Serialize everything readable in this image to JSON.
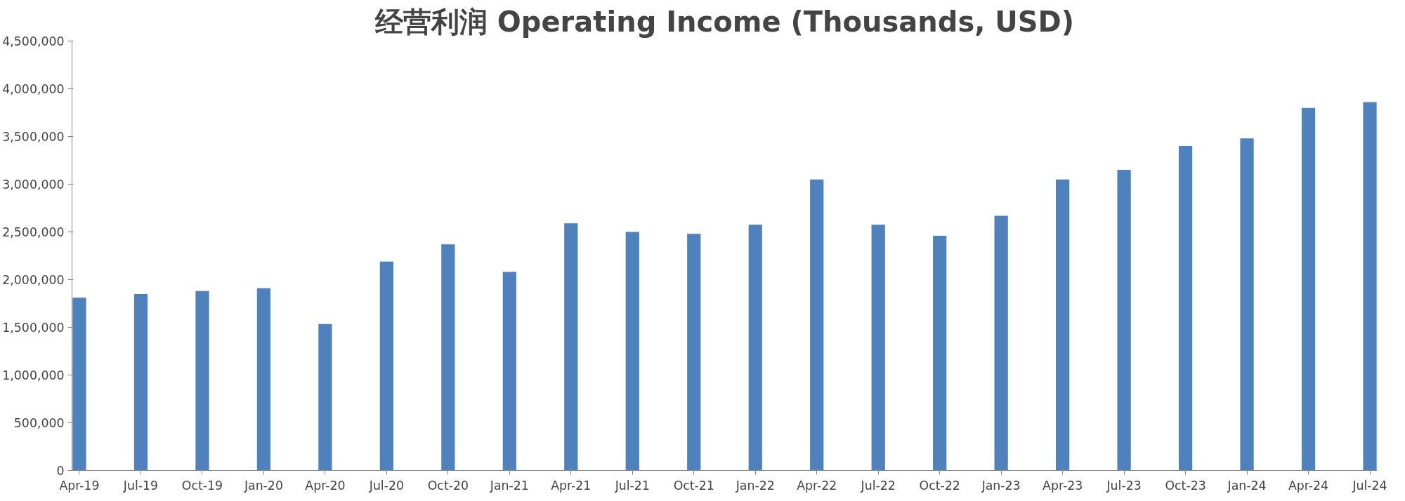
{
  "chart_data": {
    "type": "bar",
    "title": "经营利润 Operating Income (Thousands, USD)",
    "categories": [
      "Apr-19",
      "Jul-19",
      "Oct-19",
      "Jan-20",
      "Apr-20",
      "Jul-20",
      "Oct-20",
      "Jan-21",
      "Apr-21",
      "Jul-21",
      "Oct-21",
      "Jan-22",
      "Apr-22",
      "Jul-22",
      "Oct-22",
      "Jan-23",
      "Apr-23",
      "Jul-23",
      "Oct-23",
      "Jan-24",
      "Apr-24",
      "Jul-24"
    ],
    "values": [
      1810000,
      1850000,
      1880000,
      1910000,
      1535000,
      2190000,
      2370000,
      2080000,
      2590000,
      2500000,
      2480000,
      2575000,
      3050000,
      2575000,
      2460000,
      2670000,
      3050000,
      3150000,
      3400000,
      3480000,
      3800000,
      3860000
    ],
    "color": "#4f81bd",
    "ylim": [
      0,
      4500000
    ],
    "yticks": [
      {
        "value": 0,
        "label": "0"
      },
      {
        "value": 500000,
        "label": "500,000"
      },
      {
        "value": 1000000,
        "label": "1,000,000"
      },
      {
        "value": 1500000,
        "label": "1,500,000"
      },
      {
        "value": 2000000,
        "label": "2,000,000"
      },
      {
        "value": 2500000,
        "label": "2,500,000"
      },
      {
        "value": 3000000,
        "label": "3,000,000"
      },
      {
        "value": 3500000,
        "label": "3,500,000"
      },
      {
        "value": 4000000,
        "label": "4,000,000"
      },
      {
        "value": 4500000,
        "label": "4,500,000"
      }
    ],
    "grid": false
  }
}
